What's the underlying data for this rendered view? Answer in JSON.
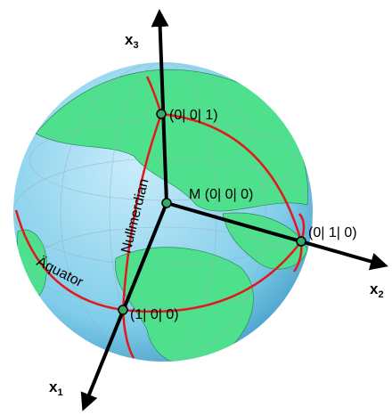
{
  "axes": [
    {
      "label": "x",
      "subscript": "3"
    },
    {
      "label": "x",
      "subscript": "2"
    },
    {
      "label": "x",
      "subscript": "1"
    }
  ],
  "points": [
    {
      "label": "(0| 0| 1)"
    },
    {
      "label": "M (0| 0| 0)"
    },
    {
      "label": "(0| 1| 0)"
    },
    {
      "label": "(1| 0| 0)"
    }
  ],
  "curves": {
    "meridian": "Nullmerdian",
    "equator": "Äquator"
  }
}
